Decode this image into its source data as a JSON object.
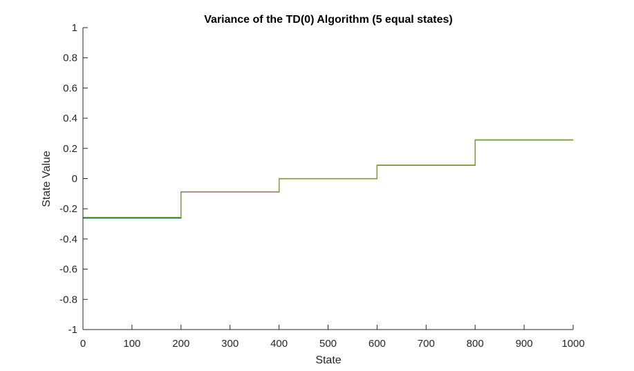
{
  "chart_data": {
    "type": "line",
    "title": "Variance of the TD(0) Algorithm (5 equal states)",
    "xlabel": "State",
    "ylabel": "State Value",
    "xlim": [
      0,
      1000
    ],
    "ylim": [
      -1,
      1
    ],
    "xticks": [
      0,
      100,
      200,
      300,
      400,
      500,
      600,
      700,
      800,
      900,
      1000
    ],
    "yticks": [
      -1,
      -0.8,
      -0.6,
      -0.4,
      -0.2,
      0,
      0.2,
      0.4,
      0.6,
      0.8,
      1
    ],
    "grid": false,
    "legend": false,
    "series": [
      {
        "color": "#0072BD",
        "segments": [
          [
            0,
            200,
            -0.262
          ],
          [
            200,
            400,
            -0.088
          ],
          [
            400,
            600,
            -0.001
          ],
          [
            600,
            800,
            0.088
          ],
          [
            800,
            1000,
            0.256
          ]
        ]
      },
      {
        "color": "#D95319",
        "segments": [
          [
            0,
            200,
            -0.258
          ],
          [
            200,
            400,
            -0.088
          ],
          [
            400,
            600,
            -0.002
          ],
          [
            600,
            800,
            0.09
          ],
          [
            800,
            1000,
            0.255
          ]
        ]
      },
      {
        "color": "#EDB120",
        "segments": [
          [
            0,
            200,
            -0.257
          ],
          [
            200,
            400,
            -0.087
          ],
          [
            400,
            600,
            -0.001
          ],
          [
            600,
            800,
            0.089
          ],
          [
            800,
            1000,
            0.256
          ]
        ]
      },
      {
        "color": "#7E2F8E",
        "segments": [
          [
            0,
            200,
            -0.259
          ],
          [
            200,
            400,
            -0.089
          ],
          [
            400,
            600,
            0.0
          ],
          [
            600,
            800,
            0.088
          ],
          [
            800,
            1000,
            0.257
          ]
        ]
      },
      {
        "color": "#77AC30",
        "segments": [
          [
            0,
            200,
            -0.256
          ],
          [
            200,
            400,
            -0.087
          ],
          [
            400,
            600,
            -0.001
          ],
          [
            600,
            800,
            0.089
          ],
          [
            800,
            1000,
            0.255
          ]
        ]
      }
    ]
  }
}
